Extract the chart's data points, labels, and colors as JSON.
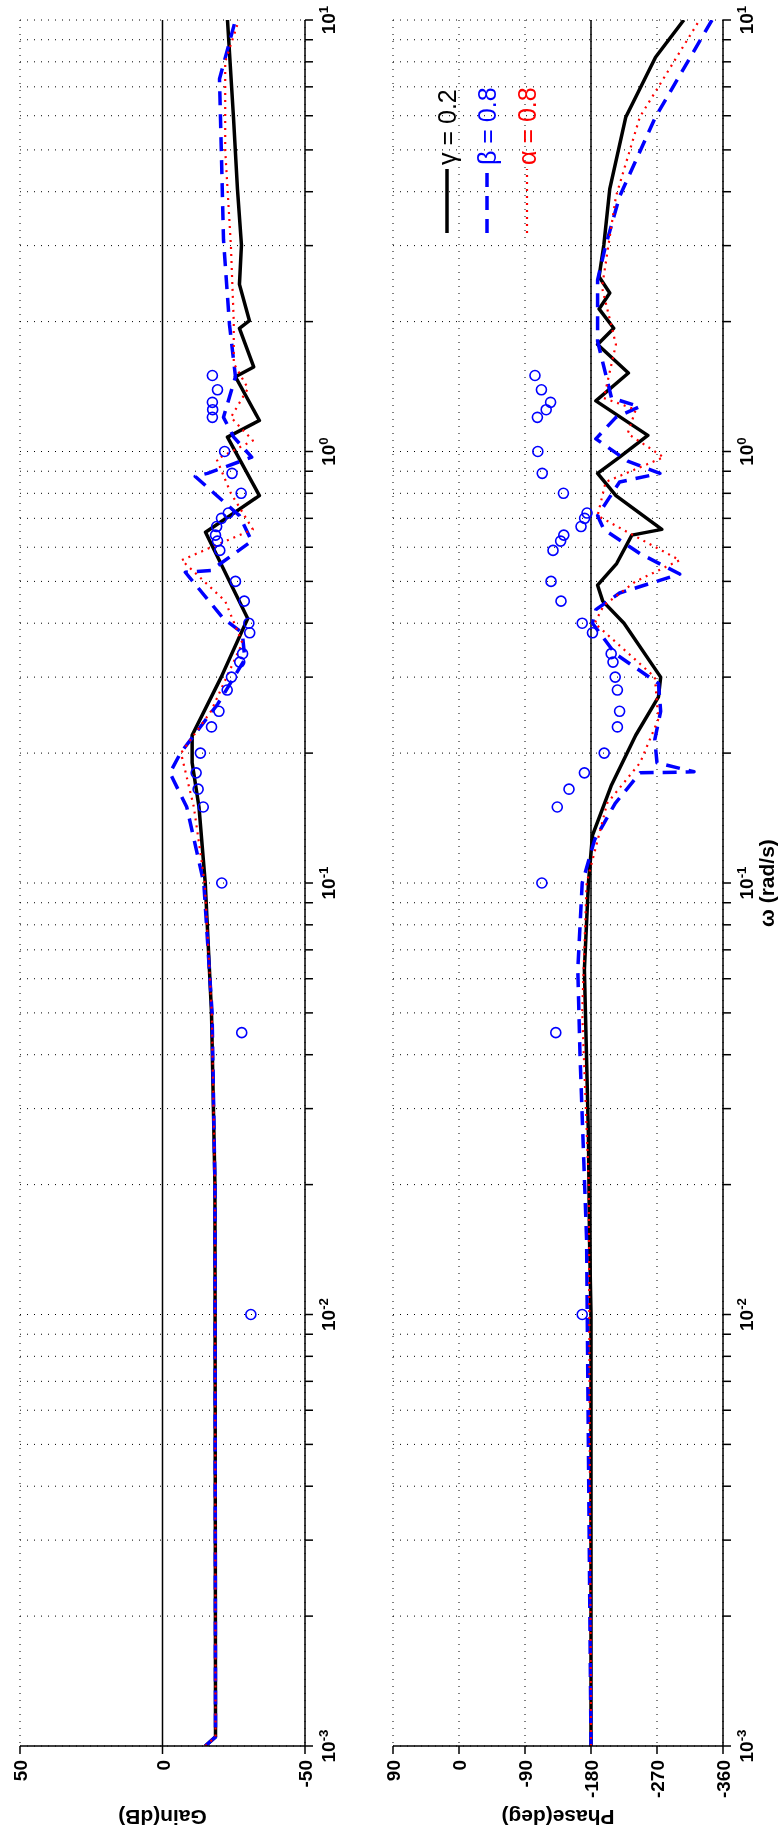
{
  "chart_data": [
    {
      "type": "line",
      "xlabel": "Gain(dB)",
      "log": "y",
      "grid": true,
      "ylim": [
        0.001,
        10
      ],
      "xlim": [
        50,
        -50
      ],
      "xticks": [
        50,
        0,
        -50
      ],
      "yticks": [
        {
          "value": 0.001,
          "label": "10$^{-3}$"
        },
        {
          "value": 0.002,
          "label": null
        },
        {
          "value": 0.003,
          "label": null
        },
        {
          "value": 0.004,
          "label": null
        },
        {
          "value": 0.005,
          "label": null
        },
        {
          "value": 0.006,
          "label": null
        },
        {
          "value": 0.007,
          "label": null
        },
        {
          "value": 0.008,
          "label": null
        },
        {
          "value": 0.009,
          "label": null
        },
        {
          "value": 0.01,
          "label": "10$^{-2}$"
        },
        {
          "value": 0.02,
          "label": null
        },
        {
          "value": 0.03,
          "label": null
        },
        {
          "value": 0.04,
          "label": null
        },
        {
          "value": 0.05,
          "label": null
        },
        {
          "value": 0.06,
          "label": null
        },
        {
          "value": 0.07,
          "label": null
        },
        {
          "value": 0.08,
          "label": null
        },
        {
          "value": 0.09,
          "label": null
        },
        {
          "value": 0.1,
          "label": "10$^{-1}$"
        },
        {
          "value": 0.2,
          "label": null
        },
        {
          "value": 0.3,
          "label": null
        },
        {
          "value": 0.4,
          "label": null
        },
        {
          "value": 0.5,
          "label": null
        },
        {
          "value": 0.6,
          "label": null
        },
        {
          "value": 0.7,
          "label": null
        },
        {
          "value": 0.8,
          "label": null
        },
        {
          "value": 0.9,
          "label": null
        },
        {
          "value": 1,
          "label": "10$^{0}$"
        },
        {
          "value": 2,
          "label": null
        },
        {
          "value": 3,
          "label": null
        },
        {
          "value": 4,
          "label": null
        },
        {
          "value": 5,
          "label": null
        },
        {
          "value": 6,
          "label": null
        },
        {
          "value": 7,
          "label": null
        },
        {
          "value": 8,
          "label": null
        },
        {
          "value": 9,
          "label": null
        },
        {
          "value": 10,
          "label": "10$^{1}$"
        }
      ],
      "ref_lines": [
        {
          "axis": "x",
          "value": 0,
          "color": "#000000",
          "line_style": "solid"
        }
      ],
      "series": [
        {
          "type": "line",
          "color": "#000000",
          "line_style": "solid",
          "marker": "none",
          "values": [
            0.001,
            0.00105,
            0.02,
            0.05,
            0.1,
            0.15,
            0.19,
            0.22,
            0.3,
            0.41,
            0.65,
            0.79,
            1.08,
            1.18,
            1.49,
            1.57,
            1.93,
            2.01,
            2.44,
            3.01,
            4.06,
            5.96,
            10
          ],
          "x": [
            -15,
            -18.6,
            -18.4,
            -17.2,
            -15,
            -12.8,
            -10.4,
            -10.4,
            -20.6,
            -29.9,
            -15.1,
            -34,
            -22.8,
            -34,
            -25.6,
            -32,
            -27,
            -30.5,
            -27,
            -27.7,
            -26.3,
            -24.9,
            -22.8
          ]
        },
        {
          "type": "line",
          "color": "#0000ff",
          "line_style": "dashed",
          "marker": "none",
          "values": [
            0.001,
            0.00105,
            0.02,
            0.05,
            0.1,
            0.15,
            0.18,
            0.2,
            0.26,
            0.33,
            0.38,
            0.41,
            0.525,
            0.53,
            0.62,
            0.71,
            0.875,
            0.89,
            0.97,
            1.08,
            1.2,
            1.49,
            1.97,
            3.1,
            4.8,
            7.3,
            10
          ],
          "x": [
            -15,
            -18.6,
            -18.4,
            -17.4,
            -14.5,
            -8.5,
            -2.6,
            -6.3,
            -19.4,
            -28.9,
            -28,
            -21.4,
            -8,
            -17,
            -31.3,
            -27,
            -11.5,
            -15.8,
            -31.3,
            -25,
            -21.4,
            -25.6,
            -23.5,
            -21.4,
            -20.7,
            -20,
            -25.6
          ]
        },
        {
          "type": "line",
          "color": "#ff0000",
          "line_style": "dotted",
          "marker": "none",
          "values": [
            0.001,
            0.00105,
            0.02,
            0.05,
            0.1,
            0.15,
            0.2,
            0.25,
            0.36,
            0.45,
            0.56,
            0.58,
            0.66,
            0.8,
            0.96,
            1.06,
            1.2,
            1.4,
            1.6,
            2,
            3,
            5,
            8,
            10
          ],
          "x": [
            -15,
            -18.6,
            -18.4,
            -17.3,
            -14.8,
            -11,
            -6.5,
            -17,
            -28,
            -22,
            -6.7,
            -12,
            -31.7,
            -24,
            -19,
            -31.7,
            -24,
            -30,
            -25,
            -25,
            -24,
            -22,
            -22,
            -26.8
          ]
        },
        {
          "type": "scatter",
          "color": "#0000ff",
          "marker": "circle",
          "values": [
            0.01,
            0.045,
            0.1,
            0.15,
            0.165,
            0.18,
            0.2,
            0.23,
            0.25,
            0.28,
            0.3,
            0.325,
            0.34,
            0.38,
            0.4,
            0.45,
            0.5,
            0.59,
            0.62,
            0.64,
            0.67,
            0.7,
            0.72,
            0.8,
            0.89,
            1,
            1.2,
            1.25,
            1.3,
            1.39,
            1.5
          ],
          "x": [
            -31,
            -27.8,
            -20.8,
            -14.3,
            -12.5,
            -11.8,
            -13.3,
            -17.2,
            -19.8,
            -22.7,
            -24.2,
            -27.1,
            -28.1,
            -30.6,
            -30.3,
            -28.7,
            -25.6,
            -20.1,
            -19.3,
            -18.6,
            -19,
            -20.7,
            -23.1,
            -27.6,
            -24.4,
            -21.8,
            -17.5,
            -17.6,
            -17.5,
            -19.3,
            -17.5
          ]
        }
      ]
    },
    {
      "type": "line",
      "xlabel": "Phase(deg)",
      "ylabel": "ω (rad/s)",
      "log": "y",
      "grid": true,
      "legend": "top left",
      "ylim": [
        0.001,
        10
      ],
      "xlim": [
        90,
        -360
      ],
      "xticks": [
        90,
        0,
        -90,
        -180,
        -270,
        -360
      ],
      "yticks": [
        {
          "value": 0.001,
          "label": "10$^{-3}$"
        },
        {
          "value": 0.002,
          "label": null
        },
        {
          "value": 0.003,
          "label": null
        },
        {
          "value": 0.004,
          "label": null
        },
        {
          "value": 0.005,
          "label": null
        },
        {
          "value": 0.006,
          "label": null
        },
        {
          "value": 0.007,
          "label": null
        },
        {
          "value": 0.008,
          "label": null
        },
        {
          "value": 0.009,
          "label": null
        },
        {
          "value": 0.01,
          "label": "10$^{-2}$"
        },
        {
          "value": 0.02,
          "label": null
        },
        {
          "value": 0.03,
          "label": null
        },
        {
          "value": 0.04,
          "label": null
        },
        {
          "value": 0.05,
          "label": null
        },
        {
          "value": 0.06,
          "label": null
        },
        {
          "value": 0.07,
          "label": null
        },
        {
          "value": 0.08,
          "label": null
        },
        {
          "value": 0.09,
          "label": null
        },
        {
          "value": 0.1,
          "label": "10$^{-1}$"
        },
        {
          "value": 0.2,
          "label": null
        },
        {
          "value": 0.3,
          "label": null
        },
        {
          "value": 0.4,
          "label": null
        },
        {
          "value": 0.5,
          "label": null
        },
        {
          "value": 0.6,
          "label": null
        },
        {
          "value": 0.7,
          "label": null
        },
        {
          "value": 0.8,
          "label": null
        },
        {
          "value": 0.9,
          "label": null
        },
        {
          "value": 1,
          "label": "10$^{0}$"
        },
        {
          "value": 2,
          "label": null
        },
        {
          "value": 3,
          "label": null
        },
        {
          "value": 4,
          "label": null
        },
        {
          "value": 5,
          "label": null
        },
        {
          "value": 6,
          "label": null
        },
        {
          "value": 7,
          "label": null
        },
        {
          "value": 8,
          "label": null
        },
        {
          "value": 9,
          "label": null
        },
        {
          "value": 10,
          "label": "10$^{1}$"
        }
      ],
      "ref_lines": [
        {
          "axis": "x",
          "value": -180,
          "color": "#000000",
          "line_style": "solid"
        }
      ],
      "series": [
        {
          "type": "line",
          "name": "γ = 0.2",
          "color": "#000000",
          "line_style": "solid",
          "marker": "none",
          "values": [
            0.001,
            0.01,
            0.0149,
            0.026,
            0.063,
            0.1,
            0.129,
            0.168,
            0.22,
            0.27,
            0.3,
            0.4,
            0.45,
            0.49,
            0.55,
            0.64,
            0.66,
            0.79,
            0.89,
            0.97,
            1.09,
            1.31,
            1.52,
            1.77,
            1.93,
            2.14,
            2.33,
            2.54,
            3.01,
            4.06,
            5.96,
            8.2,
            10
          ],
          "x": [
            -180,
            -180,
            -178,
            -176.5,
            -171,
            -176.5,
            -182,
            -207.5,
            -241,
            -272,
            -275,
            -225,
            -196,
            -189,
            -215,
            -235.7,
            -276.6,
            -214,
            -189,
            -219,
            -257.5,
            -186.6,
            -231,
            -189,
            -211,
            -191,
            -205.6,
            -191,
            -197.5,
            -205.6,
            -227.5,
            -268,
            -306.6
          ]
        },
        {
          "type": "line",
          "name": "β = 0.8",
          "color": "#0000ff",
          "line_style": "dashed",
          "marker": "none",
          "values": [
            0.001,
            0.0149,
            0.04,
            0.063,
            0.1,
            0.126,
            0.153,
            0.18,
            0.181,
            0.19,
            0.215,
            0.25,
            0.29,
            0.34,
            0.4,
            0.43,
            0.47,
            0.52,
            0.58,
            0.66,
            0.71,
            0.85,
            0.89,
            0.95,
            1.07,
            1.2,
            1.27,
            1.33,
            1.8,
            2.5,
            3,
            3.9,
            5.96,
            10
          ],
          "x": [
            -180,
            -174,
            -165,
            -162,
            -168,
            -185,
            -213,
            -247,
            -320.5,
            -270,
            -267,
            -275,
            -272,
            -213,
            -182,
            -186.6,
            -219,
            -301,
            -246.6,
            -197.5,
            -189,
            -219,
            -274,
            -230,
            -186.6,
            -214,
            -246.6,
            -208,
            -189,
            -189,
            -200,
            -219,
            -268,
            -345
          ]
        },
        {
          "type": "line",
          "name": "α = 0.8",
          "color": "#ff0000",
          "line_style": "dotted",
          "marker": "none",
          "values": [
            0.001,
            0.02,
            0.05,
            0.1,
            0.153,
            0.19,
            0.24,
            0.3,
            0.4,
            0.44,
            0.5,
            0.56,
            0.65,
            0.71,
            0.85,
            0.97,
            1.1,
            1.25,
            1.33,
            1.77,
            2.4,
            3.9,
            5.96,
            10
          ],
          "x": [
            -180,
            -177,
            -168,
            -174,
            -202,
            -247,
            -272,
            -267,
            -185,
            -197.5,
            -241,
            -301,
            -230,
            -189,
            -200,
            -279,
            -230,
            -241,
            -197.5,
            -214,
            -195,
            -214,
            -246.6,
            -328
          ]
        },
        {
          "type": "scatter",
          "color": "#0000ff",
          "marker": "circle",
          "values": [
            0.01,
            0.045,
            0.1,
            0.15,
            0.165,
            0.18,
            0.2,
            0.23,
            0.25,
            0.28,
            0.3,
            0.325,
            0.34,
            0.38,
            0.4,
            0.45,
            0.5,
            0.59,
            0.62,
            0.64,
            0.67,
            0.7,
            0.72,
            0.8,
            0.89,
            1,
            1.2,
            1.25,
            1.3,
            1.39,
            1.5
          ],
          "x": [
            -168,
            -132,
            -113,
            -134,
            -150,
            -171,
            -198,
            -216,
            -219,
            -216,
            -213,
            -210,
            -207.5,
            -182,
            -168,
            -139.1,
            -125.5,
            -128.2,
            -138.6,
            -142.9,
            -166.4,
            -171.3,
            -174.6,
            -142.4,
            -113.5,
            -107.5,
            -106.9,
            -118.9,
            -124.9,
            -112.4,
            -103.6
          ]
        }
      ]
    }
  ]
}
